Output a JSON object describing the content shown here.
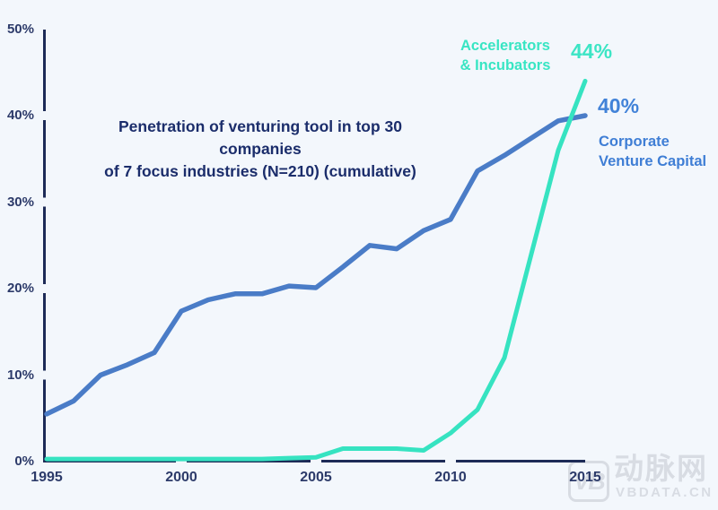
{
  "page": {
    "background": "#f3f7fc"
  },
  "chart_data": {
    "type": "line",
    "title": "Penetration of venturing tool in top 30 companies of 7 focus industries (N=210) (cumulative)",
    "x": [
      1995,
      1996,
      1997,
      1998,
      1999,
      2000,
      2001,
      2002,
      2003,
      2004,
      2005,
      2006,
      2007,
      2008,
      2009,
      2010,
      2011,
      2012,
      2013,
      2014,
      2015
    ],
    "series": [
      {
        "name": "Corporate Venture Capital",
        "color": "#4a7cc7",
        "line_width": 5.5,
        "end_label": "40%",
        "values": [
          5.5,
          7.0,
          10.0,
          11.2,
          12.6,
          17.4,
          18.7,
          19.4,
          19.4,
          20.3,
          20.1,
          22.5,
          25.0,
          24.6,
          26.7,
          28.0,
          33.6,
          35.4,
          37.4,
          39.4,
          40.0
        ]
      },
      {
        "name": "Accelerators & Incubators",
        "color": "#36e3c1",
        "line_width": 5,
        "end_label": "44%",
        "values": [
          0.3,
          0.3,
          0.3,
          0.3,
          0.3,
          0.3,
          0.3,
          0.3,
          0.3,
          0.4,
          0.5,
          1.5,
          1.5,
          1.5,
          1.3,
          3.3,
          6.0,
          12.0,
          24.0,
          36.0,
          44.0
        ]
      }
    ],
    "xticks": [
      1995,
      2000,
      2005,
      2010,
      2015
    ],
    "yticks": [
      0,
      10,
      20,
      30,
      40,
      50
    ],
    "ytick_suffix": "%",
    "xlim": [
      1995,
      2015
    ],
    "ylim": [
      0,
      50
    ],
    "grid": false,
    "legend_position": "top-right",
    "axis_color": "#1d2b57"
  },
  "labels": {
    "title_line1": "Penetration of venturing tool in top 30 companies",
    "title_line2": "of 7 focus industries (N=210) (cumulative)",
    "accel_line1": "Accelerators",
    "accel_line2": "& Incubators",
    "accel_value": "44%",
    "cvc_value": "40%",
    "cvc_line1": "Corporate",
    "cvc_line2": "Venture Capital"
  },
  "watermark": {
    "logo": "VB",
    "cn": "动脉网",
    "site": "VBDATA.CN"
  }
}
